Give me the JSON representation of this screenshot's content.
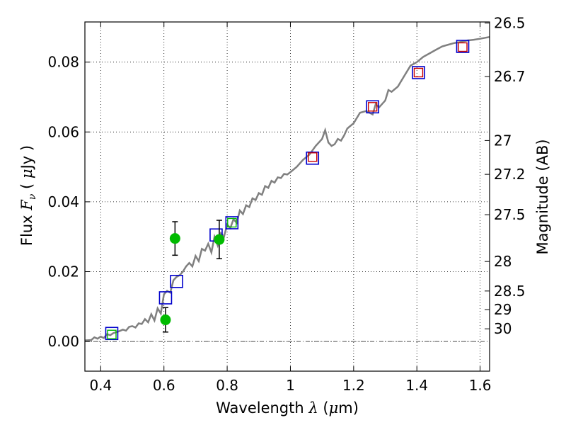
{
  "chart_data": {
    "type": "scatter",
    "title": "",
    "xlabel": {
      "prefix": "Wavelength",
      "symbol": "λ",
      "unit_open": "(",
      "unit_mu": "μ",
      "unit_rest": "m)"
    },
    "ylabel": {
      "prefix": "Flux",
      "symbol": "F",
      "subscript": "ν",
      "unit_open": "(",
      "unit_mu": "μ",
      "unit_rest": "Jy )"
    },
    "y2label": "Magnitude (AB)",
    "xlim": [
      0.35,
      1.63
    ],
    "ylim": [
      -0.0085,
      0.0915
    ],
    "grid": true,
    "xticks": [
      {
        "value": 0.4,
        "label": "0.4"
      },
      {
        "value": 0.6,
        "label": "0.6"
      },
      {
        "value": 0.8,
        "label": "0.8"
      },
      {
        "value": 1.0,
        "label": "1"
      },
      {
        "value": 1.2,
        "label": "1.2"
      },
      {
        "value": 1.4,
        "label": "1.4"
      },
      {
        "value": 1.6,
        "label": "1.6"
      }
    ],
    "yticks": [
      {
        "value": 0.0,
        "label": "0.00"
      },
      {
        "value": 0.02,
        "label": "0.02"
      },
      {
        "value": 0.04,
        "label": "0.04"
      },
      {
        "value": 0.06,
        "label": "0.06"
      },
      {
        "value": 0.08,
        "label": "0.08"
      }
    ],
    "magnitude_ticks": [
      {
        "value": 26.5,
        "label": "26.5"
      },
      {
        "value": 26.7,
        "label": "26.7"
      },
      {
        "value": 27.0,
        "label": "27"
      },
      {
        "value": 27.2,
        "label": "27.2"
      },
      {
        "value": 27.5,
        "label": "27.5"
      },
      {
        "value": 28.0,
        "label": "28"
      },
      {
        "value": 28.5,
        "label": "28.5"
      },
      {
        "value": 29.0,
        "label": "29"
      },
      {
        "value": 30.0,
        "label": "30"
      }
    ],
    "series": [
      {
        "kind": "model-line",
        "color": "#808080",
        "x": [
          0.35,
          0.37,
          0.38,
          0.39,
          0.4,
          0.41,
          0.42,
          0.43,
          0.44,
          0.45,
          0.46,
          0.47,
          0.48,
          0.49,
          0.5,
          0.51,
          0.52,
          0.53,
          0.54,
          0.55,
          0.56,
          0.57,
          0.58,
          0.59,
          0.6,
          0.61,
          0.62,
          0.63,
          0.64,
          0.65,
          0.66,
          0.67,
          0.68,
          0.69,
          0.7,
          0.71,
          0.72,
          0.73,
          0.74,
          0.75,
          0.76,
          0.77,
          0.78,
          0.79,
          0.8,
          0.81,
          0.82,
          0.83,
          0.84,
          0.85,
          0.86,
          0.87,
          0.88,
          0.89,
          0.9,
          0.91,
          0.92,
          0.93,
          0.94,
          0.95,
          0.96,
          0.97,
          0.98,
          0.99,
          1.0,
          1.02,
          1.04,
          1.06,
          1.08,
          1.1,
          1.11,
          1.12,
          1.13,
          1.14,
          1.15,
          1.16,
          1.17,
          1.18,
          1.2,
          1.22,
          1.24,
          1.26,
          1.27,
          1.28,
          1.3,
          1.31,
          1.32,
          1.34,
          1.36,
          1.38,
          1.4,
          1.42,
          1.44,
          1.46,
          1.48,
          1.5,
          1.52,
          1.54,
          1.56,
          1.58,
          1.6,
          1.63
        ],
        "y": [
          0.0003,
          0.0004,
          0.0012,
          0.0008,
          0.0014,
          0.001,
          0.0021,
          0.0018,
          0.0024,
          0.0027,
          0.003,
          0.0034,
          0.0031,
          0.0042,
          0.0044,
          0.004,
          0.0052,
          0.005,
          0.0064,
          0.0055,
          0.0078,
          0.006,
          0.0095,
          0.008,
          0.0135,
          0.0145,
          0.014,
          0.0175,
          0.0185,
          0.019,
          0.02,
          0.0215,
          0.0225,
          0.0215,
          0.0245,
          0.023,
          0.0265,
          0.026,
          0.028,
          0.0255,
          0.03,
          0.0275,
          0.031,
          0.03,
          0.0335,
          0.0325,
          0.035,
          0.034,
          0.0375,
          0.0365,
          0.039,
          0.0385,
          0.041,
          0.0405,
          0.0425,
          0.042,
          0.0445,
          0.044,
          0.046,
          0.0455,
          0.047,
          0.0468,
          0.048,
          0.0478,
          0.0485,
          0.05,
          0.052,
          0.0535,
          0.056,
          0.058,
          0.0605,
          0.057,
          0.056,
          0.0565,
          0.058,
          0.0575,
          0.059,
          0.061,
          0.0625,
          0.0655,
          0.066,
          0.065,
          0.068,
          0.067,
          0.069,
          0.072,
          0.0715,
          0.073,
          0.076,
          0.079,
          0.08,
          0.0815,
          0.0825,
          0.0835,
          0.0845,
          0.085,
          0.0855,
          0.0858,
          0.0862,
          0.0864,
          0.0867,
          0.0872
        ]
      },
      {
        "kind": "blue-open-square",
        "color": "#0000cc",
        "x": [
          0.435,
          0.605,
          0.64,
          0.765,
          0.815,
          1.07,
          1.26,
          1.405,
          1.545
        ],
        "y": [
          0.0023,
          0.0125,
          0.0172,
          0.0305,
          0.034,
          0.0525,
          0.0672,
          0.077,
          0.0845
        ]
      },
      {
        "kind": "green-small-square",
        "color": "#00bb00",
        "x": [
          0.435,
          0.815
        ],
        "y": [
          0.002,
          0.034
        ]
      },
      {
        "kind": "red-small-square",
        "color": "#cc0000",
        "x": [
          1.07,
          1.26,
          1.405,
          1.545
        ],
        "y": [
          0.0528,
          0.0672,
          0.077,
          0.0843
        ]
      },
      {
        "kind": "green-points-errorbars",
        "color": "#00bb00",
        "x": [
          0.605,
          0.635,
          0.775
        ],
        "y": [
          0.0062,
          0.0295,
          0.0292
        ],
        "yerr": [
          0.0035,
          0.0048,
          0.0055
        ]
      }
    ]
  }
}
